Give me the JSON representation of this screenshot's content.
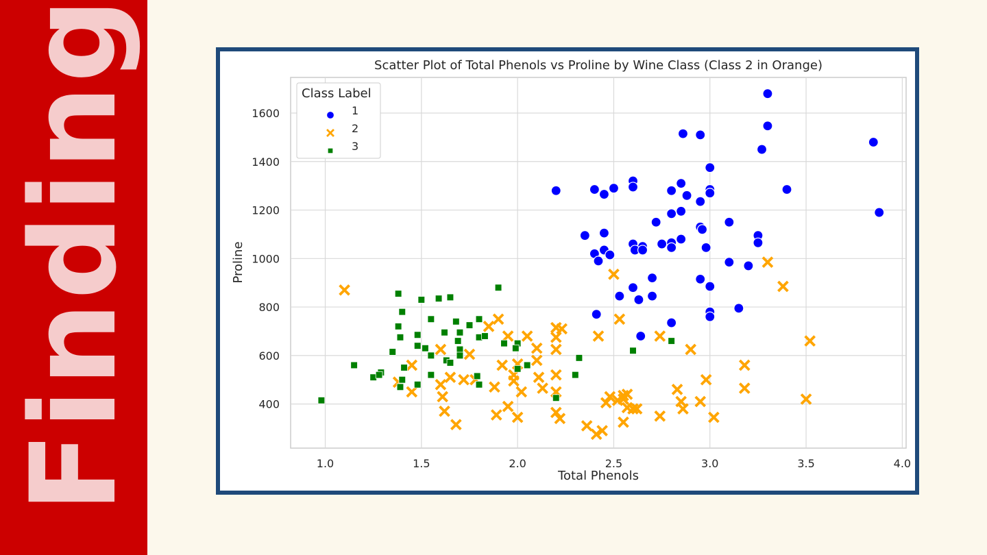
{
  "slide": {
    "title": "Findings"
  },
  "colors": {
    "sidebar": "#cc0000",
    "sidebar_text": "#f5cccc",
    "frame": "#1f4a7a",
    "class1": "#0000ff",
    "class2": "#ffa500",
    "class3": "#008000"
  },
  "chart_data": {
    "type": "scatter",
    "title": "Scatter Plot of Total Phenols vs Proline by Wine Class (Class 2 in Orange)",
    "xlabel": "Total Phenols",
    "ylabel": "Proline",
    "xlim": [
      0.82,
      4.02
    ],
    "ylim": [
      218,
      1747
    ],
    "xticks": [
      "1.0",
      "1.5",
      "2.0",
      "2.5",
      "3.0",
      "3.5",
      "4.0"
    ],
    "yticks": [
      "400",
      "600",
      "800",
      "1000",
      "1200",
      "1400",
      "1600"
    ],
    "grid": true,
    "legend": {
      "title": "Class Label",
      "position": "top-left"
    },
    "series": [
      {
        "name": "1",
        "marker": "circle",
        "color": "#0000ff",
        "points": [
          [
            3.3,
            1680
          ],
          [
            3.3,
            1547
          ],
          [
            2.86,
            1515
          ],
          [
            2.95,
            1510
          ],
          [
            3.27,
            1450
          ],
          [
            3.85,
            1480
          ],
          [
            3.0,
            1375
          ],
          [
            2.6,
            1320
          ],
          [
            2.6,
            1295
          ],
          [
            2.85,
            1310
          ],
          [
            2.5,
            1290
          ],
          [
            2.4,
            1285
          ],
          [
            2.2,
            1280
          ],
          [
            2.8,
            1280
          ],
          [
            2.45,
            1265
          ],
          [
            2.88,
            1260
          ],
          [
            3.0,
            1285
          ],
          [
            3.0,
            1270
          ],
          [
            3.4,
            1285
          ],
          [
            2.95,
            1235
          ],
          [
            2.85,
            1195
          ],
          [
            2.8,
            1185
          ],
          [
            3.88,
            1190
          ],
          [
            2.72,
            1150
          ],
          [
            3.1,
            1150
          ],
          [
            2.95,
            1130
          ],
          [
            2.96,
            1120
          ],
          [
            2.35,
            1095
          ],
          [
            2.45,
            1105
          ],
          [
            3.25,
            1095
          ],
          [
            2.85,
            1080
          ],
          [
            3.25,
            1065
          ],
          [
            2.6,
            1060
          ],
          [
            2.65,
            1050
          ],
          [
            2.75,
            1060
          ],
          [
            2.8,
            1065
          ],
          [
            2.61,
            1035
          ],
          [
            2.65,
            1035
          ],
          [
            2.8,
            1045
          ],
          [
            2.98,
            1045
          ],
          [
            2.45,
            1035
          ],
          [
            2.4,
            1020
          ],
          [
            2.48,
            1015
          ],
          [
            2.42,
            990
          ],
          [
            3.1,
            985
          ],
          [
            3.2,
            970
          ],
          [
            2.95,
            915
          ],
          [
            2.7,
            920
          ],
          [
            3.0,
            885
          ],
          [
            2.6,
            880
          ],
          [
            2.53,
            845
          ],
          [
            2.7,
            845
          ],
          [
            2.63,
            830
          ],
          [
            3.15,
            795
          ],
          [
            3.0,
            780
          ],
          [
            2.41,
            770
          ],
          [
            3.0,
            760
          ],
          [
            2.8,
            735
          ],
          [
            2.64,
            680
          ]
        ]
      },
      {
        "name": "2",
        "marker": "x",
        "color": "#ffa500",
        "points": [
          [
            1.1,
            870
          ],
          [
            3.3,
            985
          ],
          [
            2.5,
            935
          ],
          [
            3.38,
            885
          ],
          [
            1.9,
            750
          ],
          [
            2.53,
            750
          ],
          [
            1.85,
            720
          ],
          [
            2.2,
            715
          ],
          [
            2.23,
            710
          ],
          [
            2.2,
            675
          ],
          [
            2.42,
            680
          ],
          [
            1.95,
            680
          ],
          [
            2.05,
            680
          ],
          [
            2.74,
            680
          ],
          [
            3.52,
            660
          ],
          [
            1.6,
            625
          ],
          [
            2.1,
            630
          ],
          [
            2.2,
            625
          ],
          [
            2.9,
            625
          ],
          [
            1.75,
            605
          ],
          [
            1.45,
            560
          ],
          [
            1.92,
            560
          ],
          [
            2.0,
            565
          ],
          [
            2.1,
            580
          ],
          [
            3.18,
            560
          ],
          [
            1.6,
            480
          ],
          [
            1.65,
            510
          ],
          [
            1.72,
            500
          ],
          [
            1.78,
            500
          ],
          [
            1.98,
            520
          ],
          [
            1.98,
            495
          ],
          [
            2.11,
            510
          ],
          [
            2.2,
            520
          ],
          [
            2.98,
            500
          ],
          [
            1.45,
            450
          ],
          [
            1.61,
            430
          ],
          [
            1.88,
            470
          ],
          [
            2.02,
            450
          ],
          [
            2.13,
            465
          ],
          [
            2.2,
            450
          ],
          [
            2.83,
            460
          ],
          [
            3.18,
            465
          ],
          [
            1.38,
            490
          ],
          [
            2.48,
            430
          ],
          [
            2.55,
            435
          ],
          [
            2.57,
            440
          ],
          [
            2.46,
            405
          ],
          [
            2.52,
            415
          ],
          [
            2.55,
            420
          ],
          [
            2.85,
            410
          ],
          [
            2.95,
            410
          ],
          [
            3.5,
            420
          ],
          [
            1.62,
            370
          ],
          [
            1.95,
            390
          ],
          [
            2.2,
            365
          ],
          [
            2.57,
            385
          ],
          [
            2.6,
            380
          ],
          [
            2.62,
            380
          ],
          [
            2.86,
            380
          ],
          [
            1.89,
            355
          ],
          [
            2.0,
            345
          ],
          [
            2.22,
            340
          ],
          [
            2.74,
            350
          ],
          [
            3.02,
            345
          ],
          [
            1.68,
            315
          ],
          [
            2.36,
            310
          ],
          [
            2.55,
            325
          ],
          [
            2.41,
            275
          ],
          [
            2.44,
            290
          ]
        ]
      },
      {
        "name": "3",
        "marker": "square",
        "color": "#008000",
        "points": [
          [
            1.9,
            880
          ],
          [
            1.38,
            855
          ],
          [
            1.5,
            830
          ],
          [
            1.59,
            835
          ],
          [
            1.65,
            840
          ],
          [
            1.4,
            780
          ],
          [
            1.55,
            750
          ],
          [
            1.68,
            740
          ],
          [
            1.8,
            750
          ],
          [
            1.38,
            720
          ],
          [
            1.75,
            725
          ],
          [
            1.7,
            695
          ],
          [
            1.62,
            695
          ],
          [
            1.39,
            675
          ],
          [
            1.48,
            685
          ],
          [
            1.8,
            675
          ],
          [
            1.83,
            680
          ],
          [
            1.69,
            660
          ],
          [
            1.93,
            650
          ],
          [
            2.0,
            650
          ],
          [
            1.48,
            640
          ],
          [
            1.52,
            630
          ],
          [
            1.7,
            625
          ],
          [
            1.99,
            630
          ],
          [
            2.0,
            545
          ],
          [
            1.35,
            615
          ],
          [
            1.55,
            600
          ],
          [
            1.7,
            600
          ],
          [
            2.8,
            660
          ],
          [
            2.6,
            620
          ],
          [
            1.63,
            580
          ],
          [
            1.65,
            570
          ],
          [
            2.05,
            560
          ],
          [
            2.32,
            590
          ],
          [
            1.15,
            560
          ],
          [
            1.41,
            550
          ],
          [
            1.29,
            530
          ],
          [
            1.55,
            520
          ],
          [
            1.79,
            515
          ],
          [
            1.25,
            510
          ],
          [
            1.28,
            520
          ],
          [
            1.4,
            500
          ],
          [
            1.48,
            480
          ],
          [
            1.39,
            470
          ],
          [
            1.8,
            480
          ],
          [
            2.3,
            520
          ],
          [
            2.2,
            425
          ],
          [
            0.98,
            415
          ]
        ]
      }
    ]
  }
}
